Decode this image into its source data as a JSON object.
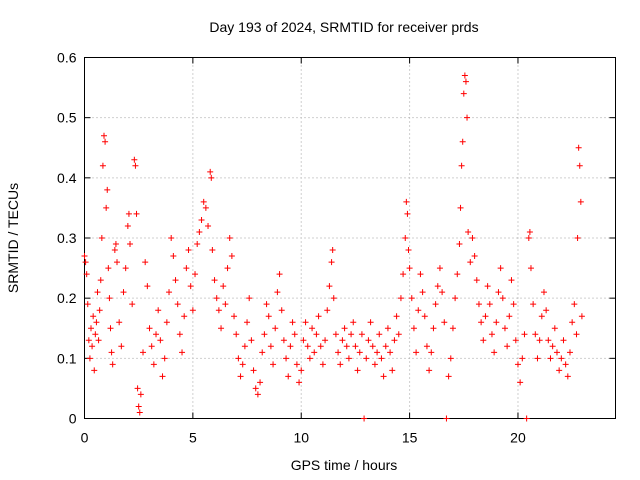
{
  "chart_data": {
    "type": "scatter",
    "title": "Day 193 of 2024, SRMTID for receiver prds",
    "xlabel": "GPS time / hours",
    "ylabel": "SRMTID / TECUs",
    "xlim": [
      0,
      24.5
    ],
    "ylim": [
      0,
      0.6
    ],
    "x_ticks": [
      0,
      5,
      10,
      15,
      20
    ],
    "x_tick_labels": [
      "0",
      "5",
      "10",
      "15",
      "20"
    ],
    "y_ticks": [
      0,
      0.1,
      0.2,
      0.3,
      0.4,
      0.5,
      0.6
    ],
    "y_tick_labels": [
      "0",
      "0.1",
      "0.2",
      "0.3",
      "0.4",
      "0.5",
      "0.6"
    ],
    "grid": true,
    "marker": "+",
    "color": "#ff0000",
    "series": [
      {
        "name": "SRMTID",
        "points": [
          [
            0.0,
            0.27
          ],
          [
            0.05,
            0.26
          ],
          [
            0.1,
            0.24
          ],
          [
            0.15,
            0.19
          ],
          [
            0.2,
            0.13
          ],
          [
            0.25,
            0.1
          ],
          [
            0.3,
            0.15
          ],
          [
            0.35,
            0.12
          ],
          [
            0.4,
            0.17
          ],
          [
            0.45,
            0.08
          ],
          [
            0.5,
            0.14
          ],
          [
            0.55,
            0.16
          ],
          [
            0.6,
            0.21
          ],
          [
            0.65,
            0.13
          ],
          [
            0.7,
            0.18
          ],
          [
            0.75,
            0.23
          ],
          [
            0.8,
            0.3
          ],
          [
            0.85,
            0.42
          ],
          [
            0.9,
            0.47
          ],
          [
            0.95,
            0.46
          ],
          [
            1.0,
            0.35
          ],
          [
            1.05,
            0.38
          ],
          [
            1.1,
            0.25
          ],
          [
            1.15,
            0.2
          ],
          [
            1.2,
            0.15
          ],
          [
            1.25,
            0.11
          ],
          [
            1.3,
            0.09
          ],
          [
            1.4,
            0.28
          ],
          [
            1.45,
            0.29
          ],
          [
            1.5,
            0.26
          ],
          [
            1.6,
            0.16
          ],
          [
            1.7,
            0.12
          ],
          [
            1.8,
            0.21
          ],
          [
            1.9,
            0.25
          ],
          [
            2.0,
            0.32
          ],
          [
            2.05,
            0.34
          ],
          [
            2.1,
            0.29
          ],
          [
            2.2,
            0.19
          ],
          [
            2.3,
            0.43
          ],
          [
            2.35,
            0.42
          ],
          [
            2.4,
            0.34
          ],
          [
            2.45,
            0.05
          ],
          [
            2.5,
            0.02
          ],
          [
            2.55,
            0.01
          ],
          [
            2.6,
            0.04
          ],
          [
            2.7,
            0.11
          ],
          [
            2.8,
            0.26
          ],
          [
            2.9,
            0.22
          ],
          [
            3.0,
            0.15
          ],
          [
            3.1,
            0.12
          ],
          [
            3.2,
            0.09
          ],
          [
            3.3,
            0.14
          ],
          [
            3.4,
            0.18
          ],
          [
            3.5,
            0.13
          ],
          [
            3.6,
            0.07
          ],
          [
            3.7,
            0.1
          ],
          [
            3.8,
            0.16
          ],
          [
            3.9,
            0.21
          ],
          [
            4.0,
            0.3
          ],
          [
            4.1,
            0.27
          ],
          [
            4.2,
            0.23
          ],
          [
            4.3,
            0.19
          ],
          [
            4.4,
            0.14
          ],
          [
            4.5,
            0.11
          ],
          [
            4.6,
            0.17
          ],
          [
            4.7,
            0.25
          ],
          [
            4.8,
            0.28
          ],
          [
            4.9,
            0.22
          ],
          [
            5.0,
            0.18
          ],
          [
            5.1,
            0.24
          ],
          [
            5.2,
            0.29
          ],
          [
            5.3,
            0.31
          ],
          [
            5.4,
            0.33
          ],
          [
            5.5,
            0.36
          ],
          [
            5.6,
            0.35
          ],
          [
            5.7,
            0.32
          ],
          [
            5.8,
            0.41
          ],
          [
            5.85,
            0.4
          ],
          [
            5.9,
            0.28
          ],
          [
            6.0,
            0.23
          ],
          [
            6.1,
            0.2
          ],
          [
            6.2,
            0.18
          ],
          [
            6.3,
            0.15
          ],
          [
            6.4,
            0.22
          ],
          [
            6.5,
            0.19
          ],
          [
            6.6,
            0.25
          ],
          [
            6.7,
            0.3
          ],
          [
            6.8,
            0.27
          ],
          [
            6.9,
            0.17
          ],
          [
            7.0,
            0.14
          ],
          [
            7.1,
            0.1
          ],
          [
            7.2,
            0.07
          ],
          [
            7.3,
            0.09
          ],
          [
            7.4,
            0.12
          ],
          [
            7.5,
            0.16
          ],
          [
            7.6,
            0.2
          ],
          [
            7.7,
            0.13
          ],
          [
            7.8,
            0.08
          ],
          [
            7.9,
            0.05
          ],
          [
            8.0,
            0.04
          ],
          [
            8.1,
            0.06
          ],
          [
            8.2,
            0.11
          ],
          [
            8.3,
            0.14
          ],
          [
            8.4,
            0.19
          ],
          [
            8.5,
            0.17
          ],
          [
            8.6,
            0.12
          ],
          [
            8.7,
            0.09
          ],
          [
            8.8,
            0.15
          ],
          [
            8.9,
            0.21
          ],
          [
            9.0,
            0.24
          ],
          [
            9.1,
            0.18
          ],
          [
            9.2,
            0.13
          ],
          [
            9.3,
            0.1
          ],
          [
            9.4,
            0.07
          ],
          [
            9.5,
            0.12
          ],
          [
            9.6,
            0.16
          ],
          [
            9.7,
            0.14
          ],
          [
            9.8,
            0.09
          ],
          [
            9.9,
            0.06
          ],
          [
            10.0,
            0.08
          ],
          [
            10.1,
            0.13
          ],
          [
            10.2,
            0.16
          ],
          [
            10.3,
            0.12
          ],
          [
            10.4,
            0.1
          ],
          [
            10.5,
            0.15
          ],
          [
            10.6,
            0.11
          ],
          [
            10.7,
            0.14
          ],
          [
            10.8,
            0.17
          ],
          [
            10.9,
            0.12
          ],
          [
            11.0,
            0.09
          ],
          [
            11.1,
            0.13
          ],
          [
            11.2,
            0.18
          ],
          [
            11.3,
            0.22
          ],
          [
            11.4,
            0.26
          ],
          [
            11.45,
            0.28
          ],
          [
            11.5,
            0.2
          ],
          [
            11.6,
            0.14
          ],
          [
            11.7,
            0.11
          ],
          [
            11.8,
            0.09
          ],
          [
            11.9,
            0.13
          ],
          [
            12.0,
            0.15
          ],
          [
            12.1,
            0.12
          ],
          [
            12.2,
            0.1
          ],
          [
            12.3,
            0.14
          ],
          [
            12.4,
            0.16
          ],
          [
            12.5,
            0.12
          ],
          [
            12.6,
            0.08
          ],
          [
            12.7,
            0.11
          ],
          [
            12.8,
            0.14
          ],
          [
            12.9,
            0.0
          ],
          [
            13.0,
            0.1
          ],
          [
            13.1,
            0.13
          ],
          [
            13.2,
            0.16
          ],
          [
            13.3,
            0.12
          ],
          [
            13.4,
            0.09
          ],
          [
            13.5,
            0.11
          ],
          [
            13.6,
            0.14
          ],
          [
            13.7,
            0.1
          ],
          [
            13.8,
            0.07
          ],
          [
            13.9,
            0.12
          ],
          [
            14.0,
            0.15
          ],
          [
            14.1,
            0.11
          ],
          [
            14.2,
            0.08
          ],
          [
            14.3,
            0.13
          ],
          [
            14.4,
            0.17
          ],
          [
            14.5,
            0.14
          ],
          [
            14.6,
            0.2
          ],
          [
            14.7,
            0.24
          ],
          [
            14.8,
            0.3
          ],
          [
            14.85,
            0.36
          ],
          [
            14.9,
            0.34
          ],
          [
            14.95,
            0.28
          ],
          [
            15.0,
            0.25
          ],
          [
            15.1,
            0.2
          ],
          [
            15.2,
            0.15
          ],
          [
            15.3,
            0.11
          ],
          [
            15.4,
            0.18
          ],
          [
            15.5,
            0.24
          ],
          [
            15.6,
            0.21
          ],
          [
            15.7,
            0.17
          ],
          [
            15.8,
            0.12
          ],
          [
            15.9,
            0.08
          ],
          [
            16.0,
            0.11
          ],
          [
            16.1,
            0.15
          ],
          [
            16.2,
            0.19
          ],
          [
            16.3,
            0.22
          ],
          [
            16.4,
            0.25
          ],
          [
            16.5,
            0.21
          ],
          [
            16.6,
            0.16
          ],
          [
            16.7,
            0.0
          ],
          [
            16.8,
            0.07
          ],
          [
            16.9,
            0.1
          ],
          [
            17.0,
            0.15
          ],
          [
            17.1,
            0.2
          ],
          [
            17.2,
            0.24
          ],
          [
            17.3,
            0.29
          ],
          [
            17.35,
            0.35
          ],
          [
            17.4,
            0.42
          ],
          [
            17.45,
            0.46
          ],
          [
            17.5,
            0.54
          ],
          [
            17.55,
            0.57
          ],
          [
            17.6,
            0.56
          ],
          [
            17.65,
            0.5
          ],
          [
            17.7,
            0.31
          ],
          [
            17.8,
            0.26
          ],
          [
            17.9,
            0.3
          ],
          [
            18.0,
            0.27
          ],
          [
            18.1,
            0.23
          ],
          [
            18.2,
            0.19
          ],
          [
            18.3,
            0.16
          ],
          [
            18.4,
            0.13
          ],
          [
            18.5,
            0.17
          ],
          [
            18.6,
            0.22
          ],
          [
            18.7,
            0.19
          ],
          [
            18.8,
            0.14
          ],
          [
            18.9,
            0.11
          ],
          [
            19.0,
            0.16
          ],
          [
            19.1,
            0.21
          ],
          [
            19.2,
            0.25
          ],
          [
            19.3,
            0.2
          ],
          [
            19.4,
            0.15
          ],
          [
            19.5,
            0.12
          ],
          [
            19.6,
            0.17
          ],
          [
            19.7,
            0.23
          ],
          [
            19.8,
            0.19
          ],
          [
            19.9,
            0.13
          ],
          [
            20.0,
            0.09
          ],
          [
            20.1,
            0.06
          ],
          [
            20.2,
            0.1
          ],
          [
            20.3,
            0.14
          ],
          [
            20.4,
            0.0
          ],
          [
            20.5,
            0.3
          ],
          [
            20.55,
            0.31
          ],
          [
            20.6,
            0.25
          ],
          [
            20.7,
            0.19
          ],
          [
            20.8,
            0.14
          ],
          [
            20.9,
            0.1
          ],
          [
            21.0,
            0.13
          ],
          [
            21.1,
            0.17
          ],
          [
            21.2,
            0.21
          ],
          [
            21.3,
            0.18
          ],
          [
            21.4,
            0.13
          ],
          [
            21.5,
            0.1
          ],
          [
            21.6,
            0.12
          ],
          [
            21.7,
            0.15
          ],
          [
            21.8,
            0.11
          ],
          [
            21.9,
            0.08
          ],
          [
            22.0,
            0.1
          ],
          [
            22.1,
            0.13
          ],
          [
            22.2,
            0.09
          ],
          [
            22.3,
            0.07
          ],
          [
            22.4,
            0.11
          ],
          [
            22.5,
            0.16
          ],
          [
            22.6,
            0.19
          ],
          [
            22.7,
            0.14
          ],
          [
            22.75,
            0.3
          ],
          [
            22.8,
            0.45
          ],
          [
            22.85,
            0.42
          ],
          [
            22.9,
            0.36
          ],
          [
            22.95,
            0.17
          ]
        ]
      }
    ]
  }
}
